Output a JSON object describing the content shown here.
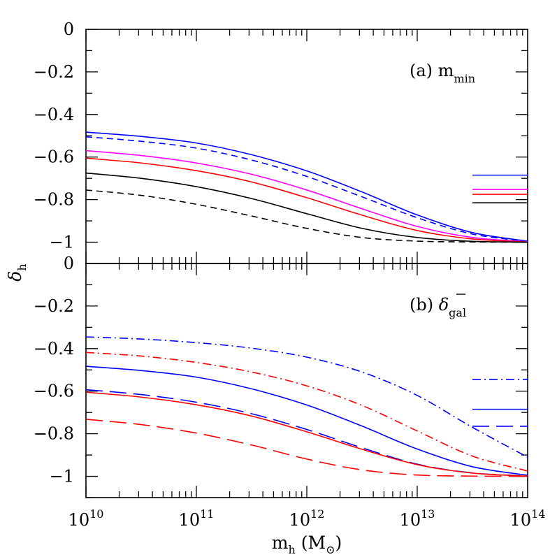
{
  "chart_data": {
    "type": "line",
    "xlabel": {
      "main": "m",
      "sub": "h",
      "unit_open": "(M",
      "unit_sub": "⊙",
      "unit_close": ")"
    },
    "ylabel": {
      "main": "δ",
      "sub": "h"
    },
    "xlim": [
      10,
      14
    ],
    "x_scale": "log",
    "x_ticks": [
      {
        "exp": 10,
        "base": "10",
        "sup": "10"
      },
      {
        "exp": 11,
        "base": "10",
        "sup": "11"
      },
      {
        "exp": 12,
        "base": "10",
        "sup": "12"
      },
      {
        "exp": 13,
        "base": "10",
        "sup": "13"
      },
      {
        "exp": 14,
        "base": "10",
        "sup": "14"
      }
    ],
    "panels": [
      {
        "id": "a",
        "label_prefix": "(a)",
        "label_main": "m",
        "label_sub": "min",
        "label_overbar": false,
        "ylim": [
          -1.1,
          0
        ],
        "y_ticks": [
          0,
          -0.2,
          -0.4,
          -0.6,
          -0.8,
          -1
        ],
        "y_tick_labels": [
          "0",
          "−0.2",
          "−0.4",
          "−0.6",
          "−0.8",
          "−1"
        ],
        "series": [
          {
            "color": "#0000ff",
            "dash": "solid",
            "log_m": [
              10,
              10.5,
              11,
              11.5,
              12,
              12.5,
              13,
              13.5,
              14
            ],
            "values": [
              -0.483,
              -0.503,
              -0.534,
              -0.589,
              -0.665,
              -0.764,
              -0.872,
              -0.955,
              -0.995
            ]
          },
          {
            "color": "#0000ff",
            "dash": "dashed",
            "log_m": [
              10,
              10.5,
              11,
              11.5,
              12,
              12.5,
              13,
              13.5,
              14
            ],
            "values": [
              -0.505,
              -0.526,
              -0.558,
              -0.614,
              -0.691,
              -0.787,
              -0.885,
              -0.962,
              -0.996
            ]
          },
          {
            "color": "#ff00ff",
            "dash": "solid",
            "log_m": [
              10,
              10.5,
              11,
              11.5,
              12,
              12.5,
              13,
              13.5,
              14
            ],
            "values": [
              -0.57,
              -0.593,
              -0.628,
              -0.681,
              -0.755,
              -0.843,
              -0.926,
              -0.978,
              -0.998
            ]
          },
          {
            "color": "#ff0000",
            "dash": "solid",
            "log_m": [
              10,
              10.5,
              11,
              11.5,
              12,
              12.5,
              13,
              13.5,
              14
            ],
            "values": [
              -0.605,
              -0.628,
              -0.664,
              -0.717,
              -0.791,
              -0.873,
              -0.945,
              -0.985,
              -0.999
            ]
          },
          {
            "color": "#000000",
            "dash": "solid",
            "log_m": [
              10,
              10.5,
              11,
              11.5,
              12,
              12.5,
              13,
              13.5,
              14
            ],
            "values": [
              -0.675,
              -0.7,
              -0.739,
              -0.795,
              -0.866,
              -0.935,
              -0.978,
              -0.996,
              -1.0
            ]
          },
          {
            "color": "#000000",
            "dash": "dashed",
            "log_m": [
              10,
              10.5,
              11,
              11.5,
              12,
              12.5,
              13,
              13.5,
              14
            ],
            "values": [
              -0.755,
              -0.78,
              -0.822,
              -0.877,
              -0.935,
              -0.978,
              -0.995,
              -0.999,
              -1.0
            ]
          }
        ],
        "markers": [
          {
            "color": "#0000ff",
            "dash": "solid",
            "value": -0.685
          },
          {
            "color": "#ff00ff",
            "dash": "solid",
            "value": -0.752
          },
          {
            "color": "#ff0000",
            "dash": "solid",
            "value": -0.775
          },
          {
            "color": "#000000",
            "dash": "solid",
            "value": -0.815
          }
        ]
      },
      {
        "id": "b",
        "label_prefix": "(b)",
        "label_main": "δ",
        "label_sub": "gal",
        "label_overbar": true,
        "ylim": [
          -1.1,
          0
        ],
        "y_ticks": [
          0,
          -0.2,
          -0.4,
          -0.6,
          -0.8,
          -1
        ],
        "y_tick_labels": [
          "0",
          "−0.2",
          "−0.4",
          "−0.6",
          "−0.8",
          "−1"
        ],
        "series": [
          {
            "color": "#0000ff",
            "dash": "dashdot",
            "log_m": [
              10,
              10.5,
              11,
              11.5,
              12,
              12.5,
              13,
              13.5,
              14
            ],
            "values": [
              -0.345,
              -0.355,
              -0.372,
              -0.398,
              -0.44,
              -0.51,
              -0.62,
              -0.77,
              -0.91
            ]
          },
          {
            "color": "#ff0000",
            "dash": "dashdot",
            "log_m": [
              10,
              10.5,
              11,
              11.5,
              12,
              12.5,
              13,
              13.5,
              14
            ],
            "values": [
              -0.418,
              -0.435,
              -0.465,
              -0.51,
              -0.575,
              -0.667,
              -0.787,
              -0.905,
              -0.975
            ]
          },
          {
            "color": "#0000ff",
            "dash": "solid",
            "log_m": [
              10,
              10.5,
              11,
              11.5,
              12,
              12.5,
              13,
              13.5,
              14
            ],
            "values": [
              -0.483,
              -0.503,
              -0.534,
              -0.589,
              -0.665,
              -0.764,
              -0.872,
              -0.955,
              -0.995
            ]
          },
          {
            "color": "#0000ff",
            "dash": "longdash",
            "log_m": [
              10,
              10.5,
              11,
              11.5,
              12,
              12.5,
              13,
              13.5,
              14
            ],
            "values": [
              -0.593,
              -0.616,
              -0.652,
              -0.706,
              -0.78,
              -0.866,
              -0.943,
              -0.984,
              -0.998
            ]
          },
          {
            "color": "#ff0000",
            "dash": "solid",
            "log_m": [
              10,
              10.5,
              11,
              11.5,
              12,
              12.5,
              13,
              13.5,
              14
            ],
            "values": [
              -0.605,
              -0.628,
              -0.664,
              -0.717,
              -0.791,
              -0.873,
              -0.945,
              -0.985,
              -0.999
            ]
          },
          {
            "color": "#ff0000",
            "dash": "longdash",
            "log_m": [
              10,
              10.5,
              11,
              11.5,
              12,
              12.5,
              13,
              13.5,
              14
            ],
            "values": [
              -0.732,
              -0.757,
              -0.797,
              -0.853,
              -0.919,
              -0.97,
              -0.994,
              -0.999,
              -1.0
            ]
          }
        ],
        "markers": [
          {
            "color": "#0000ff",
            "dash": "dashdot",
            "value": -0.545
          },
          {
            "color": "#0000ff",
            "dash": "solid",
            "value": -0.685
          },
          {
            "color": "#0000ff",
            "dash": "longdash",
            "value": -0.765
          }
        ]
      }
    ]
  }
}
